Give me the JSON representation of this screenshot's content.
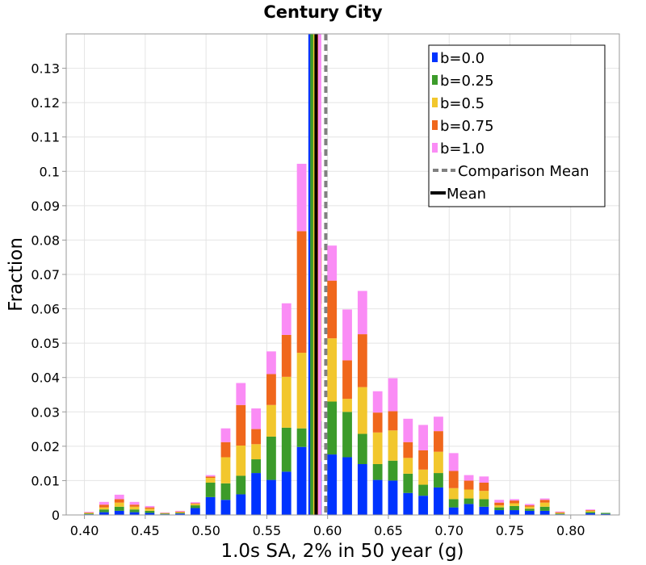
{
  "chart_data": {
    "type": "bar",
    "stacked": true,
    "title": "Century City",
    "xlabel": "1.0s SA, 2% in 50 year (g)",
    "ylabel": "Fraction",
    "xlim": [
      0.385,
      0.84
    ],
    "ylim": [
      0,
      0.14
    ],
    "bin_width": 0.0085,
    "grid": true,
    "legend_position": "top-right",
    "x_ticks": [
      "0.40",
      "0.45",
      "0.50",
      "0.55",
      "0.60",
      "0.65",
      "0.70",
      "0.75",
      "0.80"
    ],
    "y_ticks": [
      "0",
      "0.01",
      "0.02",
      "0.03",
      "0.04",
      "0.05",
      "0.06",
      "0.07",
      "0.08",
      "0.09",
      "0.1",
      "0.11",
      "0.12",
      "0.13"
    ],
    "series_colors": [
      "#0033ff",
      "#3c9b2a",
      "#f2c72d",
      "#f0671c",
      "#fa8cf5"
    ],
    "legend": [
      {
        "label": "b=0.0",
        "color": "#0033ff",
        "style": "box"
      },
      {
        "label": "b=0.25",
        "color": "#3c9b2a",
        "style": "box"
      },
      {
        "label": "b=0.5",
        "color": "#f2c72d",
        "style": "box"
      },
      {
        "label": "b=0.75",
        "color": "#f0671c",
        "style": "box"
      },
      {
        "label": "b=1.0",
        "color": "#fa8cf5",
        "style": "box"
      },
      {
        "label": "Comparison Mean",
        "color": "#808080",
        "style": "dash"
      },
      {
        "label": "Mean",
        "color": "#000000",
        "style": "line"
      }
    ],
    "bins": [
      {
        "x": 0.404,
        "b": [
          0.0002,
          0.0002,
          0.0002,
          0.0001,
          0.0002
        ]
      },
      {
        "x": 0.4165,
        "b": [
          0.0008,
          0.0008,
          0.0006,
          0.0008,
          0.0008
        ]
      },
      {
        "x": 0.429,
        "b": [
          0.0012,
          0.0012,
          0.0012,
          0.001,
          0.0013
        ]
      },
      {
        "x": 0.4415,
        "b": [
          0.0008,
          0.0008,
          0.0008,
          0.0006,
          0.0008
        ]
      },
      {
        "x": 0.454,
        "b": [
          0.0006,
          0.0006,
          0.0006,
          0.0004,
          0.0004
        ]
      },
      {
        "x": 0.4665,
        "b": [
          0.0002,
          0.0002,
          0.0001,
          0.0001,
          0.0001
        ]
      },
      {
        "x": 0.479,
        "b": [
          0.0004,
          0.0002,
          0.0002,
          0.0002,
          0.0002
        ]
      },
      {
        "x": 0.4915,
        "b": [
          0.002,
          0.0008,
          0.0004,
          0.0002,
          0.0003
        ]
      },
      {
        "x": 0.504,
        "b": [
          0.0052,
          0.0042,
          0.0014,
          0.0004,
          0.0004
        ]
      },
      {
        "x": 0.5165,
        "b": [
          0.0044,
          0.0048,
          0.0076,
          0.0044,
          0.004
        ]
      },
      {
        "x": 0.529,
        "b": [
          0.006,
          0.0054,
          0.0088,
          0.0118,
          0.0064
        ]
      },
      {
        "x": 0.5415,
        "b": [
          0.0122,
          0.004,
          0.0044,
          0.0044,
          0.006
        ]
      },
      {
        "x": 0.554,
        "b": [
          0.0102,
          0.0126,
          0.0092,
          0.009,
          0.0066
        ]
      },
      {
        "x": 0.5665,
        "b": [
          0.0126,
          0.0128,
          0.0148,
          0.0122,
          0.0092
        ]
      },
      {
        "x": 0.579,
        "b": [
          0.0198,
          0.0054,
          0.022,
          0.0354,
          0.0196
        ]
      },
      {
        "x": 0.5915,
        "b": [
          0.0156,
          0.0118,
          0.034,
          0.0164,
          0.0278
        ]
      },
      {
        "x": 0.604,
        "b": [
          0.0176,
          0.0154,
          0.0184,
          0.0168,
          0.0102
        ]
      },
      {
        "x": 0.6165,
        "b": [
          0.0168,
          0.0132,
          0.0038,
          0.0112,
          0.0148
        ]
      },
      {
        "x": 0.629,
        "b": [
          0.0148,
          0.0088,
          0.0136,
          0.0154,
          0.0126
        ]
      },
      {
        "x": 0.6415,
        "b": [
          0.0102,
          0.0046,
          0.0092,
          0.0058,
          0.0062
        ]
      },
      {
        "x": 0.654,
        "b": [
          0.01,
          0.0058,
          0.0088,
          0.0056,
          0.0096
        ]
      },
      {
        "x": 0.6665,
        "b": [
          0.0064,
          0.0056,
          0.0046,
          0.0046,
          0.0068
        ]
      },
      {
        "x": 0.679,
        "b": [
          0.0056,
          0.0032,
          0.0044,
          0.0056,
          0.0074
        ]
      },
      {
        "x": 0.6915,
        "b": [
          0.008,
          0.0042,
          0.0062,
          0.006,
          0.0042
        ]
      },
      {
        "x": 0.704,
        "b": [
          0.0022,
          0.0024,
          0.0032,
          0.005,
          0.0052
        ]
      },
      {
        "x": 0.7165,
        "b": [
          0.0032,
          0.0016,
          0.0026,
          0.0026,
          0.0016
        ]
      },
      {
        "x": 0.729,
        "b": [
          0.0024,
          0.0022,
          0.0024,
          0.0024,
          0.0018
        ]
      },
      {
        "x": 0.7415,
        "b": [
          0.0014,
          0.0008,
          0.0006,
          0.0008,
          0.0008
        ]
      },
      {
        "x": 0.754,
        "b": [
          0.0014,
          0.0012,
          0.0008,
          0.0008,
          0.0004
        ]
      },
      {
        "x": 0.7665,
        "b": [
          0.0012,
          0.0006,
          0.0006,
          0.0004,
          0.0004
        ]
      },
      {
        "x": 0.779,
        "b": [
          0.0012,
          0.0012,
          0.0012,
          0.0008,
          0.0004
        ]
      },
      {
        "x": 0.7915,
        "b": [
          0.0002,
          0.0002,
          0.0002,
          0.0002,
          0.0002
        ]
      },
      {
        "x": 0.804,
        "b": [
          0.0,
          0.0,
          0.0,
          0.0,
          0.0
        ]
      },
      {
        "x": 0.8165,
        "b": [
          0.0005,
          0.0004,
          0.0003,
          0.0002,
          0.0002
        ]
      },
      {
        "x": 0.829,
        "b": [
          0.0003,
          0.0003,
          0.0,
          0.0,
          0.0
        ]
      }
    ],
    "mean_lines": [
      {
        "label": "b=0.0",
        "x": 0.5855,
        "color": "#0033ff",
        "style": "solid"
      },
      {
        "label": "b=0.25",
        "x": 0.587,
        "color": "#3c9b2a",
        "style": "solid"
      },
      {
        "label": "b=0.5",
        "x": 0.5895,
        "color": "#f2c72d",
        "style": "solid"
      },
      {
        "label": "b=0.75",
        "x": 0.592,
        "color": "#f0671c",
        "style": "solid"
      },
      {
        "label": "b=1.0",
        "x": 0.5935,
        "color": "#fa8cf5",
        "style": "solid"
      },
      {
        "label": "Comparison Mean",
        "x": 0.5985,
        "color": "#808080",
        "style": "dash"
      },
      {
        "label": "Mean",
        "x": 0.5905,
        "color": "#000000",
        "style": "solid"
      }
    ]
  }
}
